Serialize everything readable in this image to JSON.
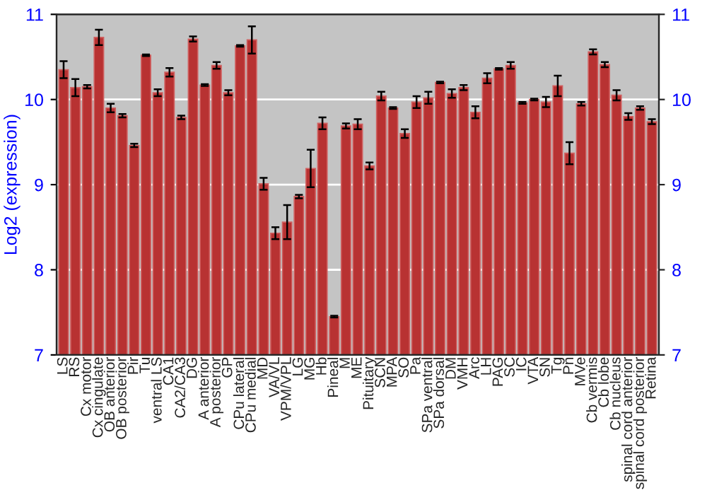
{
  "chart_data": {
    "type": "bar",
    "ylabel": "Log2 (expression)",
    "categories": [
      "LS",
      "RS",
      "Cx motor",
      "Cx cingulate",
      "OB anterior",
      "OB posterior",
      "Pir",
      "Tu",
      "ventral LS",
      "CA1",
      "CA2/CA3",
      "DG",
      "A anterior",
      "A posterior",
      "GP",
      "CPu lateral",
      "CPu medial",
      "MD",
      "VA/VL",
      "VPM/VPL",
      "LG",
      "MG",
      "Hb",
      "Pineal",
      "M",
      "ME",
      "Pituitary",
      "SCN",
      "MPA",
      "SO",
      "Pa",
      "SPa ventral",
      "SPa dorsal",
      "DM",
      "VMH",
      "Arc",
      "LH",
      "PAG",
      "SC",
      "IC",
      "VTA",
      "SN",
      "Tg",
      "Pn",
      "MVe",
      "Cb vermis",
      "Cb lobe",
      "Cb nucleus",
      "spinal cord anterior",
      "spinal cord posterior",
      "Retina"
    ],
    "values": [
      10.35,
      10.14,
      10.15,
      10.73,
      9.9,
      9.81,
      9.46,
      10.52,
      10.08,
      10.32,
      9.79,
      10.71,
      10.17,
      10.4,
      10.08,
      10.63,
      10.7,
      9.01,
      8.43,
      8.56,
      8.86,
      9.19,
      9.72,
      7.45,
      9.69,
      9.71,
      9.22,
      10.04,
      9.9,
      9.6,
      9.97,
      10.02,
      10.2,
      10.07,
      10.14,
      9.85,
      10.25,
      10.36,
      10.4,
      9.96,
      10.0,
      9.97,
      10.16,
      9.37,
      9.95,
      10.56,
      10.41,
      10.05,
      9.8,
      9.9,
      9.74
    ],
    "errors": [
      0.1,
      0.1,
      0.02,
      0.09,
      0.05,
      0.02,
      0.02,
      0.01,
      0.04,
      0.05,
      0.02,
      0.03,
      0.01,
      0.04,
      0.03,
      0.01,
      0.16,
      0.07,
      0.07,
      0.2,
      0.02,
      0.22,
      0.07,
      0.01,
      0.03,
      0.06,
      0.04,
      0.05,
      0.01,
      0.05,
      0.07,
      0.07,
      0.01,
      0.05,
      0.03,
      0.07,
      0.06,
      0.01,
      0.04,
      0.01,
      0.01,
      0.06,
      0.12,
      0.13,
      0.02,
      0.03,
      0.03,
      0.06,
      0.04,
      0.02,
      0.03
    ],
    "color": "#b83232",
    "ylim": [
      7,
      11
    ],
    "yticks": [
      7,
      8,
      9,
      10,
      11
    ],
    "y2lim": [
      7,
      11
    ],
    "y2ticks": [
      7,
      8,
      9,
      10,
      11
    ],
    "grid": "y",
    "legend": false
  }
}
